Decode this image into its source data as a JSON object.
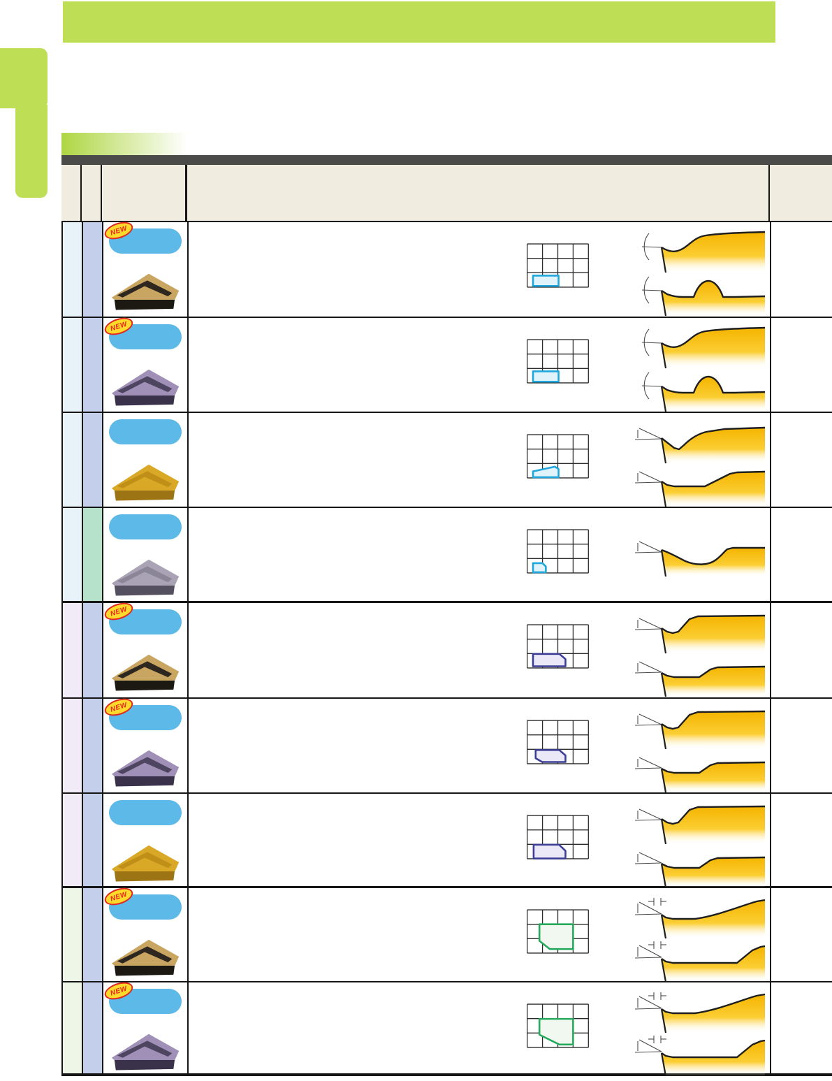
{
  "page_title": "",
  "badges": {
    "new_label": "NEW"
  },
  "colors": {
    "banner_green": "#BDDE55",
    "strip_gradient_from": "#AED643",
    "strip_gradient_to": "#FFFFFF",
    "header_dark": "#4B4B49",
    "header_beige": "#F0ECDF",
    "pill_blue": "#5CB9E8",
    "new_badge_bg": "#FFD92B",
    "new_badge_red": "#DF2A1F",
    "profile_gold": "#F5B400",
    "group_col1": {
      "A": "#E7F3F9",
      "B": "#F1EBF7",
      "C": "#EEF6E8"
    },
    "col2_blue": "#C3CFEB",
    "col2_mint": "#B6E2CB",
    "highlight": {
      "cyan": {
        "stroke": "#1FA6DC",
        "fill": "#E0F2FA"
      },
      "purple": {
        "stroke": "#3C3E96",
        "fill": "#EBE9F7"
      },
      "green": {
        "stroke": "#27A95C",
        "fill": "#F0F8F0"
      }
    }
  },
  "insert_styles": {
    "gold_layered": {
      "top": "#C9A562",
      "band": "#2E2720",
      "front": "#1C1812"
    },
    "purple_layered": {
      "top": "#A090B8",
      "band": "#4E4560",
      "front": "#39324A"
    },
    "gold_wavy": {
      "top": "#D9A827",
      "band": "#C08F18",
      "front": "#9C7414"
    },
    "grey_flat": {
      "top": "#A9A3B5",
      "band": "#8B8598",
      "front": "#55505F"
    }
  },
  "table": {
    "rows": [
      {
        "group": "A",
        "col2": "blue",
        "is_new": true,
        "insert": "gold_layered",
        "application_grid": {
          "cols": 4,
          "rows": 3,
          "highlight_color": "cyan",
          "shape": [
            [
              0.38,
              2.2
            ],
            [
              2.05,
              2.2
            ],
            [
              2.05,
              2.92
            ],
            [
              0.38,
              2.92
            ]
          ]
        },
        "tip": "arc",
        "profiles": [
          "s_rise",
          "dome"
        ]
      },
      {
        "group": "A",
        "col2": "blue",
        "is_new": true,
        "insert": "purple_layered",
        "application_grid": {
          "cols": 4,
          "rows": 3,
          "highlight_color": "cyan",
          "shape": [
            [
              0.38,
              2.2
            ],
            [
              2.05,
              2.2
            ],
            [
              2.05,
              2.92
            ],
            [
              0.38,
              2.92
            ]
          ]
        },
        "tip": "arc",
        "profiles": [
          "s_rise",
          "dome"
        ]
      },
      {
        "group": "A",
        "col2": "blue",
        "is_new": false,
        "insert": "gold_wavy",
        "application_grid": {
          "cols": 4,
          "rows": 3,
          "highlight_color": "cyan",
          "shape": [
            [
              0.38,
              2.55
            ],
            [
              1.8,
              2.22
            ],
            [
              2.05,
              2.38
            ],
            [
              2.05,
              2.95
            ],
            [
              0.38,
              2.95
            ]
          ]
        },
        "tip": "wedge",
        "profiles": [
          "v_dip_rise",
          "flat_ramp_mid"
        ]
      },
      {
        "group": "A",
        "col2": "mint",
        "is_new": false,
        "insert": "grey_flat",
        "application_grid": {
          "cols": 4,
          "rows": 3,
          "highlight_color": "cyan",
          "shape": [
            [
              0.38,
              2.32
            ],
            [
              1.0,
              2.32
            ],
            [
              1.22,
              2.55
            ],
            [
              1.22,
              2.95
            ],
            [
              0.38,
              2.95
            ]
          ]
        },
        "tip": "wedge",
        "profiles": [
          "valley"
        ]
      },
      {
        "group": "B",
        "col2": "blue",
        "is_new": true,
        "insert": "gold_layered",
        "application_grid": {
          "cols": 4,
          "rows": 3,
          "highlight_color": "purple",
          "shape": [
            [
              0.38,
              2.02
            ],
            [
              2.1,
              2.02
            ],
            [
              2.5,
              2.38
            ],
            [
              2.5,
              2.88
            ],
            [
              0.38,
              2.88
            ]
          ]
        },
        "tip": "wedge",
        "profiles": [
          "step_high",
          "step_low"
        ]
      },
      {
        "group": "B",
        "col2": "blue",
        "is_new": true,
        "insert": "purple_layered",
        "application_grid": {
          "cols": 4,
          "rows": 3,
          "highlight_color": "purple",
          "shape": [
            [
              0.55,
              2.05
            ],
            [
              2.1,
              2.05
            ],
            [
              2.5,
              2.42
            ],
            [
              2.5,
              2.88
            ],
            [
              0.98,
              2.88
            ],
            [
              0.55,
              2.62
            ]
          ]
        },
        "tip": "wedge",
        "profiles": [
          "step_high",
          "step_low"
        ]
      },
      {
        "group": "B",
        "col2": "blue",
        "is_new": false,
        "insert": "gold_wavy",
        "application_grid": {
          "cols": 4,
          "rows": 3,
          "highlight_color": "purple",
          "shape": [
            [
              0.42,
              2.02
            ],
            [
              2.08,
              2.02
            ],
            [
              2.5,
              2.45
            ],
            [
              2.5,
              2.98
            ],
            [
              0.42,
              2.98
            ]
          ]
        },
        "tip": "wedge",
        "profiles": [
          "step_high",
          "step_low"
        ]
      },
      {
        "group": "C",
        "col2": "blue",
        "is_new": true,
        "insert": "gold_layered",
        "application_grid": {
          "cols": 4,
          "rows": 3,
          "highlight_color": "green",
          "shape": [
            [
              0.8,
              1.0
            ],
            [
              3.0,
              1.0
            ],
            [
              3.0,
              2.72
            ],
            [
              1.48,
              2.72
            ],
            [
              0.8,
              2.15
            ]
          ]
        },
        "tip": "dim",
        "profiles": [
          "gentle_rise",
          "flat_far_ramp"
        ]
      },
      {
        "group": "C",
        "col2": "blue",
        "is_new": true,
        "insert": "purple_layered",
        "application_grid": {
          "cols": 4,
          "rows": 3,
          "highlight_color": "green",
          "shape": [
            [
              0.8,
              1.02
            ],
            [
              3.0,
              1.02
            ],
            [
              3.0,
              2.8
            ],
            [
              2.1,
              2.8
            ],
            [
              0.8,
              2.12
            ]
          ]
        },
        "tip": "dim",
        "profiles": [
          "gentle_rise",
          "flat_far_ramp"
        ]
      }
    ]
  }
}
